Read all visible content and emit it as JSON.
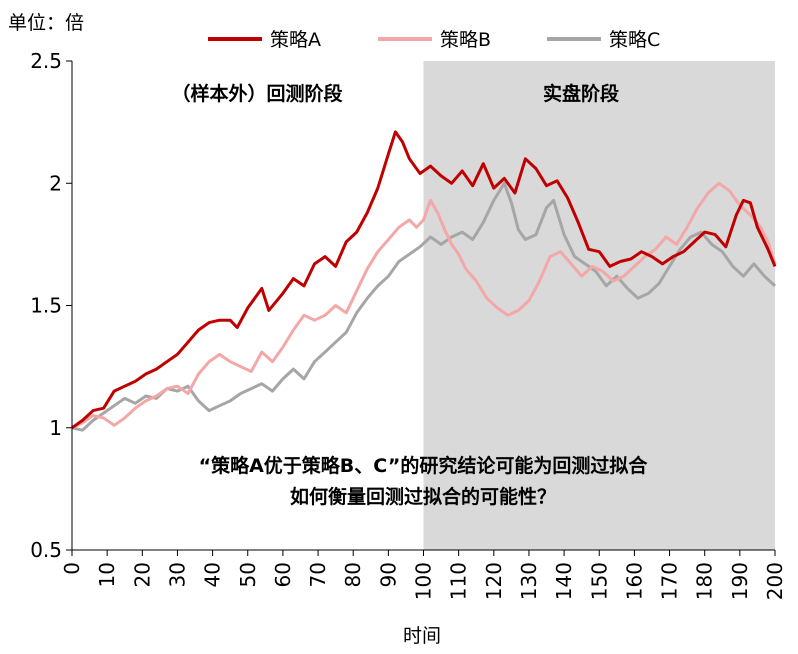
{
  "chart_data": {
    "type": "line",
    "unit_label": "单位：倍",
    "xlabel": "时间",
    "ylabel": "",
    "xlim": [
      0,
      200
    ],
    "ylim": [
      0.5,
      2.5
    ],
    "x_ticks": [
      0,
      10,
      20,
      30,
      40,
      50,
      60,
      70,
      80,
      90,
      100,
      110,
      120,
      130,
      140,
      150,
      160,
      170,
      180,
      190,
      200
    ],
    "y_ticks": [
      {
        "value": 0.5,
        "label": "0.5"
      },
      {
        "value": 1,
        "label": "1"
      },
      {
        "value": 1.5,
        "label": "1.5"
      },
      {
        "value": 2,
        "label": "2"
      },
      {
        "value": 2.5,
        "label": "2.5"
      }
    ],
    "grid": false,
    "legend_position": "top-center",
    "shaded_region": {
      "x_start": 100,
      "x_end": 200,
      "color": "#d9d9d9"
    },
    "region_labels": {
      "backtest": "（样本外）回测阶段",
      "live": "实盘阶段"
    },
    "annotation": {
      "line1": "“策略A优于策略B、C”的研究结论可能为回测过拟合",
      "line2": "如何衡量回测过拟合的可能性？"
    },
    "series": [
      {
        "name": "策略A",
        "color": "#c00000",
        "points": [
          [
            0,
            1.0
          ],
          [
            3,
            1.03
          ],
          [
            6,
            1.07
          ],
          [
            9,
            1.08
          ],
          [
            12,
            1.15
          ],
          [
            15,
            1.17
          ],
          [
            18,
            1.19
          ],
          [
            21,
            1.22
          ],
          [
            24,
            1.24
          ],
          [
            27,
            1.27
          ],
          [
            30,
            1.3
          ],
          [
            33,
            1.35
          ],
          [
            36,
            1.4
          ],
          [
            39,
            1.43
          ],
          [
            42,
            1.44
          ],
          [
            45,
            1.44
          ],
          [
            47,
            1.41
          ],
          [
            50,
            1.49
          ],
          [
            54,
            1.57
          ],
          [
            56,
            1.48
          ],
          [
            60,
            1.55
          ],
          [
            63,
            1.61
          ],
          [
            66,
            1.58
          ],
          [
            69,
            1.67
          ],
          [
            72,
            1.7
          ],
          [
            75,
            1.66
          ],
          [
            78,
            1.76
          ],
          [
            81,
            1.8
          ],
          [
            84,
            1.88
          ],
          [
            87,
            1.98
          ],
          [
            90,
            2.12
          ],
          [
            92,
            2.21
          ],
          [
            94,
            2.17
          ],
          [
            96,
            2.1
          ],
          [
            99,
            2.04
          ],
          [
            102,
            2.07
          ],
          [
            105,
            2.03
          ],
          [
            108,
            2.0
          ],
          [
            111,
            2.05
          ],
          [
            114,
            1.99
          ],
          [
            117,
            2.08
          ],
          [
            120,
            1.98
          ],
          [
            123,
            2.02
          ],
          [
            126,
            1.96
          ],
          [
            129,
            2.1
          ],
          [
            132,
            2.06
          ],
          [
            135,
            1.99
          ],
          [
            138,
            2.01
          ],
          [
            141,
            1.94
          ],
          [
            144,
            1.84
          ],
          [
            147,
            1.73
          ],
          [
            150,
            1.72
          ],
          [
            153,
            1.66
          ],
          [
            156,
            1.68
          ],
          [
            159,
            1.69
          ],
          [
            162,
            1.72
          ],
          [
            165,
            1.7
          ],
          [
            168,
            1.67
          ],
          [
            171,
            1.7
          ],
          [
            174,
            1.72
          ],
          [
            177,
            1.76
          ],
          [
            180,
            1.8
          ],
          [
            183,
            1.79
          ],
          [
            186,
            1.74
          ],
          [
            189,
            1.87
          ],
          [
            191,
            1.93
          ],
          [
            193,
            1.92
          ],
          [
            195,
            1.82
          ],
          [
            198,
            1.73
          ],
          [
            200,
            1.66
          ]
        ]
      },
      {
        "name": "策略B",
        "color": "#f4a7a7",
        "points": [
          [
            0,
            1.0
          ],
          [
            3,
            1.02
          ],
          [
            6,
            1.05
          ],
          [
            9,
            1.04
          ],
          [
            12,
            1.01
          ],
          [
            15,
            1.04
          ],
          [
            18,
            1.08
          ],
          [
            21,
            1.11
          ],
          [
            24,
            1.13
          ],
          [
            27,
            1.16
          ],
          [
            30,
            1.17
          ],
          [
            33,
            1.14
          ],
          [
            36,
            1.22
          ],
          [
            39,
            1.27
          ],
          [
            42,
            1.3
          ],
          [
            45,
            1.27
          ],
          [
            48,
            1.25
          ],
          [
            51,
            1.23
          ],
          [
            54,
            1.31
          ],
          [
            57,
            1.27
          ],
          [
            60,
            1.33
          ],
          [
            63,
            1.4
          ],
          [
            66,
            1.46
          ],
          [
            69,
            1.44
          ],
          [
            72,
            1.46
          ],
          [
            75,
            1.5
          ],
          [
            78,
            1.47
          ],
          [
            81,
            1.56
          ],
          [
            84,
            1.65
          ],
          [
            87,
            1.72
          ],
          [
            90,
            1.77
          ],
          [
            93,
            1.82
          ],
          [
            96,
            1.85
          ],
          [
            98,
            1.82
          ],
          [
            100,
            1.85
          ],
          [
            102,
            1.93
          ],
          [
            104,
            1.88
          ],
          [
            106,
            1.81
          ],
          [
            108,
            1.75
          ],
          [
            110,
            1.71
          ],
          [
            112,
            1.65
          ],
          [
            115,
            1.6
          ],
          [
            118,
            1.53
          ],
          [
            121,
            1.49
          ],
          [
            124,
            1.46
          ],
          [
            127,
            1.48
          ],
          [
            130,
            1.52
          ],
          [
            133,
            1.6
          ],
          [
            136,
            1.7
          ],
          [
            139,
            1.72
          ],
          [
            142,
            1.67
          ],
          [
            145,
            1.62
          ],
          [
            148,
            1.66
          ],
          [
            151,
            1.64
          ],
          [
            154,
            1.6
          ],
          [
            157,
            1.62
          ],
          [
            160,
            1.66
          ],
          [
            163,
            1.7
          ],
          [
            166,
            1.73
          ],
          [
            169,
            1.78
          ],
          [
            172,
            1.75
          ],
          [
            175,
            1.82
          ],
          [
            178,
            1.9
          ],
          [
            181,
            1.96
          ],
          [
            184,
            2.0
          ],
          [
            187,
            1.97
          ],
          [
            190,
            1.91
          ],
          [
            193,
            1.87
          ],
          [
            196,
            1.82
          ],
          [
            198,
            1.76
          ],
          [
            200,
            1.67
          ]
        ]
      },
      {
        "name": "策略C",
        "color": "#a6a6a6",
        "points": [
          [
            0,
            1.0
          ],
          [
            3,
            0.99
          ],
          [
            6,
            1.03
          ],
          [
            9,
            1.06
          ],
          [
            12,
            1.09
          ],
          [
            15,
            1.12
          ],
          [
            18,
            1.1
          ],
          [
            21,
            1.13
          ],
          [
            24,
            1.12
          ],
          [
            27,
            1.16
          ],
          [
            30,
            1.15
          ],
          [
            33,
            1.17
          ],
          [
            36,
            1.11
          ],
          [
            39,
            1.07
          ],
          [
            42,
            1.09
          ],
          [
            45,
            1.11
          ],
          [
            48,
            1.14
          ],
          [
            51,
            1.16
          ],
          [
            54,
            1.18
          ],
          [
            57,
            1.15
          ],
          [
            60,
            1.2
          ],
          [
            63,
            1.24
          ],
          [
            66,
            1.2
          ],
          [
            69,
            1.27
          ],
          [
            72,
            1.31
          ],
          [
            75,
            1.35
          ],
          [
            78,
            1.39
          ],
          [
            81,
            1.47
          ],
          [
            84,
            1.53
          ],
          [
            87,
            1.58
          ],
          [
            90,
            1.62
          ],
          [
            93,
            1.68
          ],
          [
            96,
            1.71
          ],
          [
            99,
            1.74
          ],
          [
            102,
            1.78
          ],
          [
            105,
            1.75
          ],
          [
            108,
            1.78
          ],
          [
            111,
            1.8
          ],
          [
            114,
            1.77
          ],
          [
            117,
            1.84
          ],
          [
            120,
            1.93
          ],
          [
            123,
            2.0
          ],
          [
            125,
            1.92
          ],
          [
            127,
            1.81
          ],
          [
            129,
            1.77
          ],
          [
            132,
            1.79
          ],
          [
            135,
            1.9
          ],
          [
            137,
            1.93
          ],
          [
            140,
            1.79
          ],
          [
            143,
            1.7
          ],
          [
            146,
            1.67
          ],
          [
            149,
            1.64
          ],
          [
            152,
            1.58
          ],
          [
            155,
            1.62
          ],
          [
            158,
            1.57
          ],
          [
            161,
            1.53
          ],
          [
            164,
            1.55
          ],
          [
            167,
            1.59
          ],
          [
            170,
            1.66
          ],
          [
            173,
            1.73
          ],
          [
            176,
            1.78
          ],
          [
            179,
            1.8
          ],
          [
            182,
            1.75
          ],
          [
            185,
            1.72
          ],
          [
            188,
            1.66
          ],
          [
            191,
            1.62
          ],
          [
            194,
            1.67
          ],
          [
            197,
            1.62
          ],
          [
            200,
            1.58
          ]
        ]
      }
    ]
  }
}
